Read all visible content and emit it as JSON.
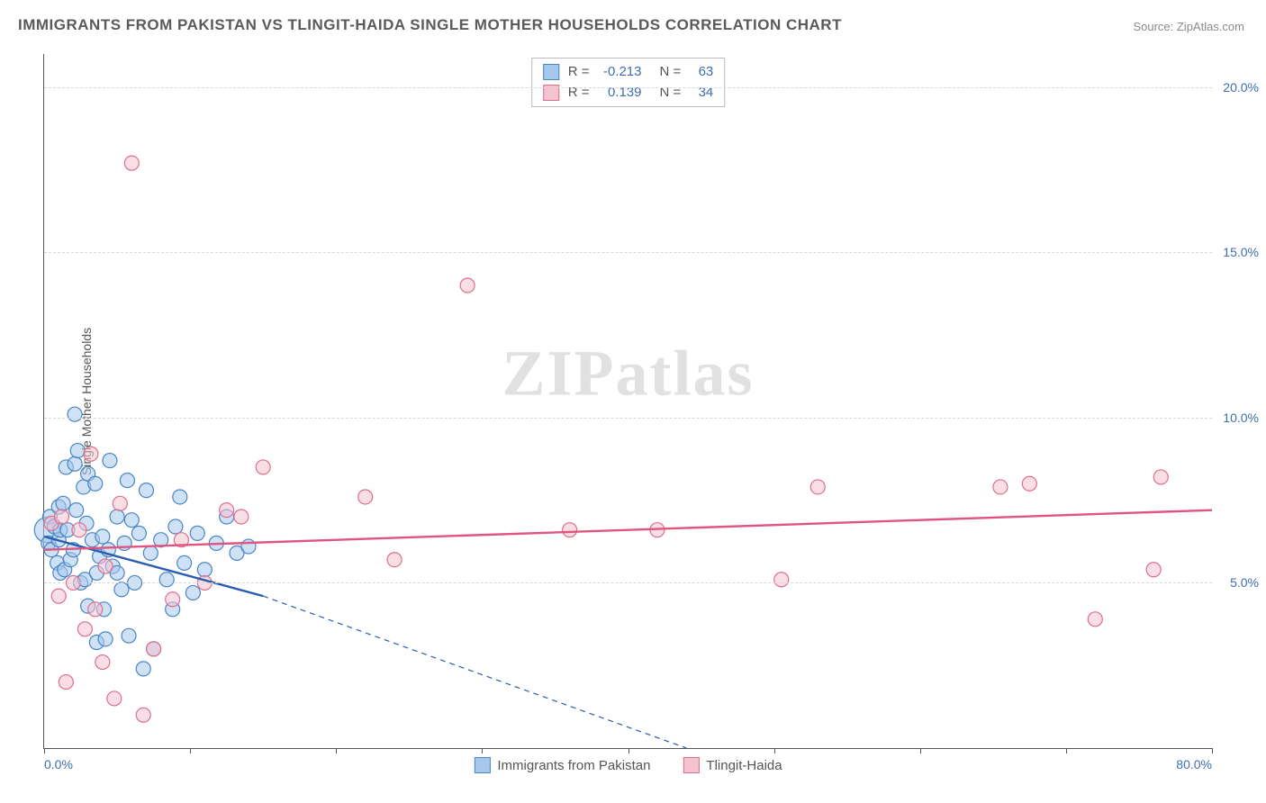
{
  "title": "IMMIGRANTS FROM PAKISTAN VS TLINGIT-HAIDA SINGLE MOTHER HOUSEHOLDS CORRELATION CHART",
  "source_prefix": "Source: ",
  "source_name": "ZipAtlas.com",
  "y_axis_label": "Single Mother Households",
  "watermark": "ZIPatlas",
  "chart": {
    "type": "scatter",
    "background_color": "#ffffff",
    "grid_color": "#d8d8d8",
    "axis_color": "#555555",
    "label_color": "#3c6eb4",
    "title_color": "#5a5a5a",
    "xlim": [
      0,
      80
    ],
    "ylim": [
      0,
      21
    ],
    "x_tick_step": 10,
    "x_tick_label_first": "0.0%",
    "x_tick_label_last": "80.0%",
    "y_ticks": [
      5,
      10,
      15,
      20
    ],
    "y_tick_labels": [
      "5.0%",
      "10.0%",
      "15.0%",
      "20.0%"
    ],
    "marker_radius": 8,
    "marker_stroke_width": 1.2,
    "trend_line_width": 2.4
  },
  "series": [
    {
      "key": "pakistan",
      "label": "Immigrants from Pakistan",
      "fill": "#a6c8ec",
      "stroke": "#4a86c5",
      "fill_opacity": 0.55,
      "line_color": "#2a5db0",
      "R": "-0.213",
      "N": "63",
      "trend": {
        "x1": 0,
        "y1": 6.4,
        "x2_solid": 15,
        "y2_solid": 4.6,
        "x2": 44,
        "y2": 0
      },
      "points": [
        [
          0.2,
          6.6,
          14
        ],
        [
          0.3,
          6.2
        ],
        [
          0.4,
          7.0
        ],
        [
          0.5,
          6.0
        ],
        [
          0.7,
          6.7
        ],
        [
          0.9,
          5.6
        ],
        [
          1.0,
          6.3
        ],
        [
          1.0,
          7.3
        ],
        [
          1.1,
          5.3
        ],
        [
          1.1,
          6.6
        ],
        [
          1.3,
          7.4
        ],
        [
          1.4,
          5.4
        ],
        [
          1.5,
          8.5
        ],
        [
          1.6,
          6.6
        ],
        [
          1.8,
          5.7
        ],
        [
          2.0,
          6.0
        ],
        [
          2.1,
          8.6
        ],
        [
          2.1,
          10.1
        ],
        [
          2.2,
          7.2
        ],
        [
          2.3,
          9.0
        ],
        [
          2.5,
          5.0
        ],
        [
          2.7,
          7.9
        ],
        [
          2.8,
          5.1
        ],
        [
          2.9,
          6.8
        ],
        [
          3.0,
          4.3
        ],
        [
          3.0,
          8.3
        ],
        [
          3.3,
          6.3
        ],
        [
          3.5,
          8.0
        ],
        [
          3.6,
          3.2
        ],
        [
          3.6,
          5.3
        ],
        [
          3.8,
          5.8
        ],
        [
          4.0,
          6.4
        ],
        [
          4.1,
          4.2
        ],
        [
          4.2,
          3.3
        ],
        [
          4.4,
          6.0
        ],
        [
          4.5,
          8.7
        ],
        [
          4.7,
          5.5
        ],
        [
          5.0,
          5.3
        ],
        [
          5.0,
          7.0
        ],
        [
          5.3,
          4.8
        ],
        [
          5.5,
          6.2
        ],
        [
          5.7,
          8.1
        ],
        [
          5.8,
          3.4
        ],
        [
          6.0,
          6.9
        ],
        [
          6.2,
          5.0
        ],
        [
          6.5,
          6.5
        ],
        [
          6.8,
          2.4
        ],
        [
          7.0,
          7.8
        ],
        [
          7.3,
          5.9
        ],
        [
          7.5,
          3.0
        ],
        [
          8.0,
          6.3
        ],
        [
          8.4,
          5.1
        ],
        [
          8.8,
          4.2
        ],
        [
          9.0,
          6.7
        ],
        [
          9.3,
          7.6
        ],
        [
          9.6,
          5.6
        ],
        [
          10.2,
          4.7
        ],
        [
          10.5,
          6.5
        ],
        [
          11.0,
          5.4
        ],
        [
          11.8,
          6.2
        ],
        [
          12.5,
          7.0
        ],
        [
          13.2,
          5.9
        ],
        [
          14.0,
          6.1
        ]
      ]
    },
    {
      "key": "tlingit",
      "label": "Tlingit-Haida",
      "fill": "#f5c2cf",
      "stroke": "#de6e8e",
      "fill_opacity": 0.55,
      "line_color": "#e0557f",
      "R": "0.139",
      "N": "34",
      "trend": {
        "x1": 0,
        "y1": 6.0,
        "x2": 80,
        "y2": 7.2
      },
      "points": [
        [
          0.5,
          6.8
        ],
        [
          1.0,
          4.6
        ],
        [
          1.2,
          7.0
        ],
        [
          1.5,
          2.0
        ],
        [
          2.0,
          5.0
        ],
        [
          2.4,
          6.6
        ],
        [
          2.8,
          3.6
        ],
        [
          3.2,
          8.9
        ],
        [
          3.5,
          4.2
        ],
        [
          4.0,
          2.6
        ],
        [
          4.2,
          5.5
        ],
        [
          4.8,
          1.5
        ],
        [
          5.2,
          7.4
        ],
        [
          6.0,
          17.7
        ],
        [
          6.8,
          1.0
        ],
        [
          7.5,
          3.0
        ],
        [
          8.8,
          4.5
        ],
        [
          9.4,
          6.3
        ],
        [
          11.0,
          5.0
        ],
        [
          12.5,
          7.2
        ],
        [
          13.5,
          7.0
        ],
        [
          15.0,
          8.5
        ],
        [
          22.0,
          7.6
        ],
        [
          24.0,
          5.7
        ],
        [
          29.0,
          14.0
        ],
        [
          36.0,
          6.6
        ],
        [
          42.0,
          6.6
        ],
        [
          50.5,
          5.1
        ],
        [
          53.0,
          7.9
        ],
        [
          65.5,
          7.9
        ],
        [
          67.5,
          8.0
        ],
        [
          72.0,
          3.9
        ],
        [
          76.0,
          5.4
        ],
        [
          76.5,
          8.2
        ]
      ]
    }
  ],
  "legend": {
    "R_label": "R =",
    "N_label": "N ="
  }
}
